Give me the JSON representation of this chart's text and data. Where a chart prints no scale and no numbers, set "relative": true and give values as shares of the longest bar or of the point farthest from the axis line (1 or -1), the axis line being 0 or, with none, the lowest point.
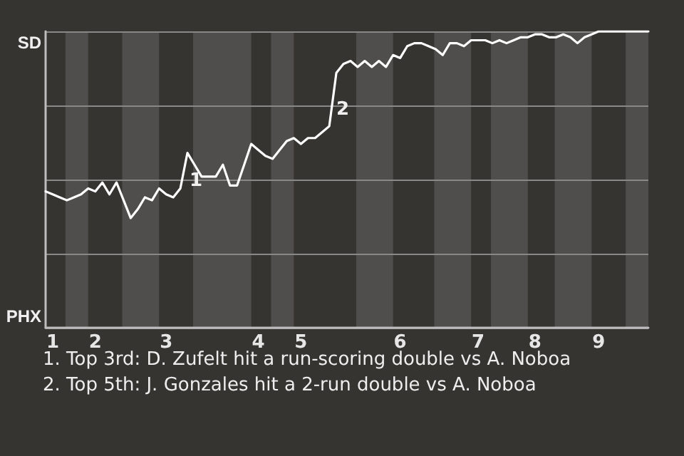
{
  "chart_data": {
    "type": "line",
    "relative": true,
    "categories": [
      null,
      "1",
      null,
      null,
      null,
      null,
      null,
      "2",
      null,
      null,
      null,
      null,
      null,
      null,
      null,
      null,
      null,
      "3",
      null,
      null,
      null,
      null,
      null,
      null,
      null,
      null,
      null,
      null,
      null,
      null,
      "4",
      null,
      null,
      null,
      null,
      null,
      "5",
      null,
      null,
      null,
      null,
      null,
      null,
      null,
      null,
      null,
      null,
      null,
      null,
      null,
      "6",
      null,
      null,
      null,
      null,
      null,
      null,
      null,
      null,
      null,
      null,
      "7",
      null,
      null,
      null,
      null,
      null,
      null,
      null,
      "8",
      null,
      null,
      null,
      null,
      null,
      null,
      null,
      null,
      "9",
      null,
      null,
      null,
      null,
      null,
      null,
      null
    ],
    "values": [
      0.46,
      0.45,
      0.44,
      0.43,
      0.44,
      0.45,
      0.47,
      0.46,
      0.49,
      0.45,
      0.49,
      0.43,
      0.37,
      0.4,
      0.44,
      0.43,
      0.47,
      0.45,
      0.44,
      0.47,
      0.59,
      0.55,
      0.51,
      0.51,
      0.51,
      0.55,
      0.48,
      0.48,
      0.55,
      0.62,
      0.6,
      0.58,
      0.57,
      0.6,
      0.63,
      0.64,
      0.62,
      0.64,
      0.64,
      0.66,
      0.68,
      0.86,
      0.89,
      0.9,
      0.88,
      0.9,
      0.88,
      0.9,
      0.88,
      0.92,
      0.91,
      0.95,
      0.96,
      0.96,
      0.95,
      0.94,
      0.92,
      0.96,
      0.96,
      0.95,
      0.97,
      0.97,
      0.97,
      0.96,
      0.97,
      0.96,
      0.97,
      0.98,
      0.98,
      0.99,
      0.99,
      0.98,
      0.98,
      0.99,
      0.98,
      0.96,
      0.98,
      0.99,
      1,
      1,
      1,
      1,
      1,
      1,
      1,
      1
    ],
    "color": "#ffffff",
    "grid": "y",
    "marker": "none",
    "line_style": "solid",
    "annotations": [
      "SD",
      "PHX",
      "1",
      "2",
      "1. Top 3rd: D. Zufelt hit a run-scoring double vs A. Noboa",
      "2. Top 5th: J. Gonzales hit a 2-run double vs A. Noboa"
    ]
  }
}
